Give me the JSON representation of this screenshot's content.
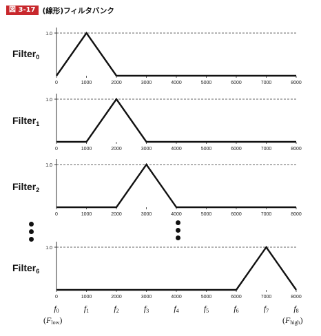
{
  "header": {
    "badge": "図 3-17",
    "title": "(線形)フィルタバンク"
  },
  "axis": {
    "ytick": "1.0",
    "xticks": [
      "0",
      "1000",
      "2000",
      "3000",
      "4000",
      "5000",
      "6000",
      "7000",
      "8000"
    ]
  },
  "chart_data": [
    {
      "type": "line",
      "name": "Filter0",
      "label": {
        "base": "Filter",
        "sub": "0"
      },
      "x": [
        0,
        1000,
        2000,
        8000
      ],
      "y": [
        0,
        1,
        0,
        0
      ],
      "xlim": [
        0,
        8000
      ],
      "ylim": [
        0,
        1
      ]
    },
    {
      "type": "line",
      "name": "Filter1",
      "label": {
        "base": "Filter",
        "sub": "1"
      },
      "x": [
        0,
        1000,
        2000,
        3000,
        8000
      ],
      "y": [
        0,
        0,
        1,
        0,
        0
      ],
      "xlim": [
        0,
        8000
      ],
      "ylim": [
        0,
        1
      ]
    },
    {
      "type": "line",
      "name": "Filter2",
      "label": {
        "base": "Filter",
        "sub": "2"
      },
      "x": [
        0,
        2000,
        3000,
        4000,
        8000
      ],
      "y": [
        0,
        0,
        1,
        0,
        0
      ],
      "xlim": [
        0,
        8000
      ],
      "ylim": [
        0,
        1
      ]
    },
    {
      "type": "line",
      "name": "Filter6",
      "label": {
        "base": "Filter",
        "sub": "6"
      },
      "x": [
        0,
        6000,
        7000,
        8000
      ],
      "y": [
        0,
        0,
        1,
        0
      ],
      "xlim": [
        0,
        8000
      ],
      "ylim": [
        0,
        1
      ]
    }
  ],
  "frequencies": [
    {
      "base": "f",
      "sub": "0"
    },
    {
      "base": "f",
      "sub": "1"
    },
    {
      "base": "f",
      "sub": "2"
    },
    {
      "base": "f",
      "sub": "3"
    },
    {
      "base": "f",
      "sub": "4"
    },
    {
      "base": "f",
      "sub": "5"
    },
    {
      "base": "f",
      "sub": "6"
    },
    {
      "base": "f",
      "sub": "7"
    },
    {
      "base": "f",
      "sub": "8"
    }
  ],
  "edges": {
    "low": {
      "base": "F",
      "sub": "low"
    },
    "high": {
      "base": "F",
      "sub": "high"
    }
  }
}
